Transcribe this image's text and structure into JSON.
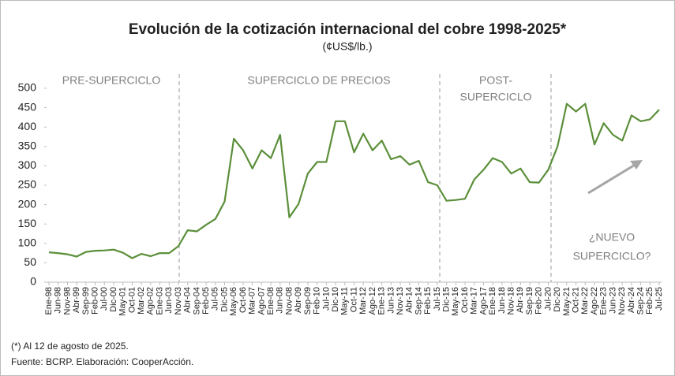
{
  "chart_data": {
    "type": "line",
    "title": "Evolución de la cotización internacional del cobre 1998-2025*",
    "subtitle": "(¢US$/lb.)",
    "categories": [
      "Ene-98",
      "Jun-98",
      "Nov-98",
      "Abr-99",
      "Sep-99",
      "Feb-00",
      "Jul-00",
      "Dic-00",
      "May-01",
      "Oct-01",
      "Mar-02",
      "Ago-02",
      "Ene-03",
      "Jun-03",
      "Nov-03",
      "Abr-04",
      "Sep-04",
      "Feb-05",
      "Jul-05",
      "Dic-05",
      "May-06",
      "Oct-06",
      "Mar-07",
      "Ago-07",
      "Ene-08",
      "Jun-08",
      "Nov-08",
      "Abr-09",
      "Sep-09",
      "Feb-10",
      "Jul-10",
      "Dic-10",
      "May-11",
      "Oct-11",
      "Mar-12",
      "Ago-12",
      "Ene-13",
      "Jun-13",
      "Nov-13",
      "Abr-14",
      "Sep-14",
      "Feb-15",
      "Jul-15",
      "Dic-15",
      "May-16",
      "Oct-16",
      "Mar-17",
      "Ago-17",
      "Ene-18",
      "Jun-18",
      "Nov-18",
      "Abr-19",
      "Sep-19",
      "Feb-20",
      "Jul-20",
      "Dic-20",
      "May-21",
      "Oct-21",
      "Mar-22",
      "Ago-22",
      "Ene-23",
      "Jun-23",
      "Nov-23",
      "Abr-24",
      "Sep-24",
      "Feb-25",
      "Jul-25"
    ],
    "series": [
      {
        "color": "#5b8f3a",
        "values": [
          77,
          75,
          72,
          66,
          78,
          81,
          82,
          84,
          76,
          62,
          73,
          67,
          75,
          75,
          93,
          134,
          131,
          148,
          163,
          208,
          370,
          340,
          293,
          340,
          320,
          380,
          167,
          202,
          280,
          310,
          310,
          415,
          415,
          335,
          383,
          340,
          365,
          317,
          325,
          303,
          313,
          258,
          250,
          210,
          212,
          215,
          265,
          290,
          320,
          310,
          280,
          293,
          258,
          257,
          290,
          350,
          460,
          440,
          460,
          355,
          410,
          380,
          365,
          430,
          415,
          420,
          445
        ]
      }
    ],
    "ylim": [
      0,
      500
    ],
    "yticks": [
      0,
      50,
      100,
      150,
      200,
      250,
      300,
      350,
      400,
      450,
      500
    ],
    "annotations": [
      "PRE-SUPERCICLO",
      "SUPERCICLO DE PRECIOS",
      "POST-",
      "SUPERCICLO",
      "¿NUEVO",
      "SUPERCICLO?"
    ],
    "notes": [
      "(*) Al 12 de agosto de 2025.",
      "Fuente: BCRP. Elaboración: CooperAcción."
    ]
  }
}
